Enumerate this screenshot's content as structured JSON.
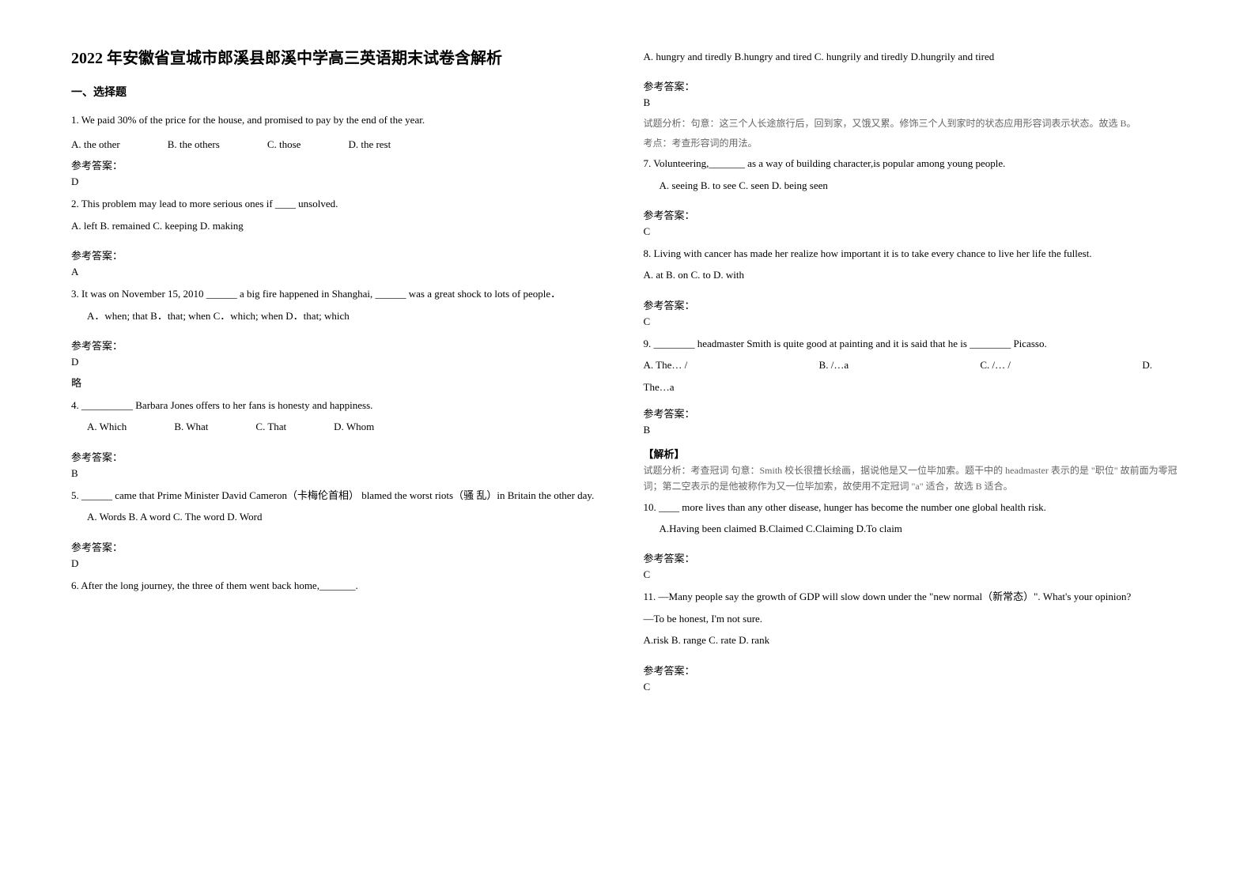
{
  "title": "2022 年安徽省宣城市郎溪县郎溪中学高三英语期末试卷含解析",
  "section1_header": "一、选择题",
  "q1": {
    "text": "1. We paid 30% of the price for the house, and promised to pay    by the end of the year.",
    "optA": "A. the other",
    "optB": "B. the others",
    "optC": "C. those",
    "optD": "D. the rest",
    "answer_label": "参考答案：",
    "answer": "D"
  },
  "q2": {
    "text": "2. This problem may lead to more serious ones if ____ unsolved.",
    "options": "A. left B. remained        C. keeping    D. making",
    "answer_label": "参考答案：",
    "answer": "A"
  },
  "q3": {
    "text": "3. It was on November 15, 2010 ______ a big fire happened in Shanghai, ______ was a great shock to lots of people．",
    "options": "A．when; that        B．that; when     C．which; when    D．that; which",
    "answer_label": "参考答案：",
    "answer": "D",
    "note": "略"
  },
  "q4": {
    "text": "4. __________ Barbara Jones offers to her fans is honesty and happiness.",
    "optA": "A. Which",
    "optB": "B. What",
    "optC": "C. That",
    "optD": "D. Whom",
    "answer_label": "参考答案：",
    "answer": "B"
  },
  "q5": {
    "text": "5. ______ came that Prime Minister David Cameron（卡梅伦首相） blamed the worst riots（骚       乱）in Britain the other day.",
    "options": "A. Words        B. A word       C. The word       D. Word",
    "answer_label": "参考答案：",
    "answer": "D"
  },
  "q6": {
    "text": "6. After the long journey, the three of them went back home,_______.",
    "options": "A. hungry and tiredly    B.hungry and tired    C. hungrily and tiredly     D.hungrily and tired",
    "answer_label": "参考答案：",
    "answer": "B",
    "explanation1": "试题分析：句意：这三个人长途旅行后，回到家，又饿又累。修饰三个人到家时的状态应用形容词表示状态。故选 B。",
    "explanation2": "考点：考查形容词的用法。"
  },
  "q7": {
    "text": "7. Volunteering,_______ as a way of building character,is popular among young people.",
    "options": "A. seeing      B. to see      C. seen          D. being seen",
    "answer_label": "参考答案：",
    "answer": "C"
  },
  "q8": {
    "text": "8. Living with cancer has made her realize how important it is to take every chance to live her life   the fullest.",
    "options": "A. at     B. on       C. to        D. with",
    "answer_label": "参考答案：",
    "answer": "C"
  },
  "q9": {
    "text": "9. ________ headmaster Smith is quite good at painting and it is said that he is ________ Picasso.",
    "optA": "A. The… /",
    "optB": "B. /…a",
    "optC": "C. /… /",
    "optD": "D.",
    "optD2": "The…a",
    "answer_label": "参考答案：",
    "answer": "B",
    "explanation_header": "【解析】",
    "explanation1": "试题分析：考查冠词   句意：Smith 校长很擅长绘画，据说他是又一位毕加索。题干中的 headmaster 表示的是 \"职位\" 故前面为零冠词；第二空表示的是他被称作为又一位毕加索，故使用不定冠词 \"a\" 适合，故选 B 适合。"
  },
  "q10": {
    "text": "10. ____ more lives than any other disease, hunger has become the number one global health risk.",
    "options": "A.Having been claimed    B.Claimed    C.Claiming       D.To claim",
    "answer_label": "参考答案：",
    "answer": "C"
  },
  "q11": {
    "text1": "11. —Many people say the growth     of GDP will slow down under the \"new normal（新常态）\". What's your opinion?",
    "text2": "—To be honest, I'm not sure.",
    "options": "A.risk    B. range   C. rate    D. rank",
    "answer_label": "参考答案：",
    "answer": "C"
  }
}
